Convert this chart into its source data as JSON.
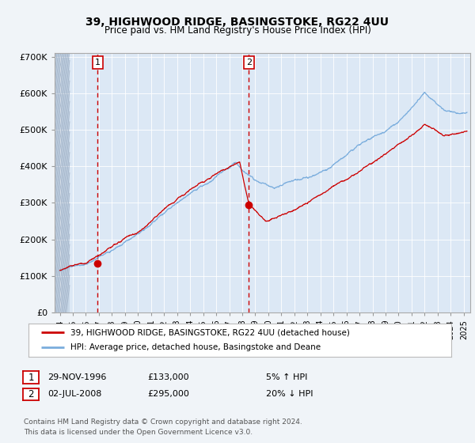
{
  "title": "39, HIGHWOOD RIDGE, BASINGSTOKE, RG22 4UU",
  "subtitle": "Price paid vs. HM Land Registry's House Price Index (HPI)",
  "legend_label_red": "39, HIGHWOOD RIDGE, BASINGSTOKE, RG22 4UU (detached house)",
  "legend_label_blue": "HPI: Average price, detached house, Basingstoke and Deane",
  "annotation1_date": "29-NOV-1996",
  "annotation1_price": "£133,000",
  "annotation1_hpi": "5% ↑ HPI",
  "annotation2_date": "02-JUL-2008",
  "annotation2_price": "£295,000",
  "annotation2_hpi": "20% ↓ HPI",
  "footnote_line1": "Contains HM Land Registry data © Crown copyright and database right 2024.",
  "footnote_line2": "This data is licensed under the Open Government Licence v3.0.",
  "sale1_year": 1996.91,
  "sale1_value": 133000,
  "sale2_year": 2008.5,
  "sale2_value": 295000,
  "background_color": "#f0f4f8",
  "plot_bg_color": "#dce8f5",
  "red_color": "#cc0000",
  "blue_color": "#7aaddd"
}
